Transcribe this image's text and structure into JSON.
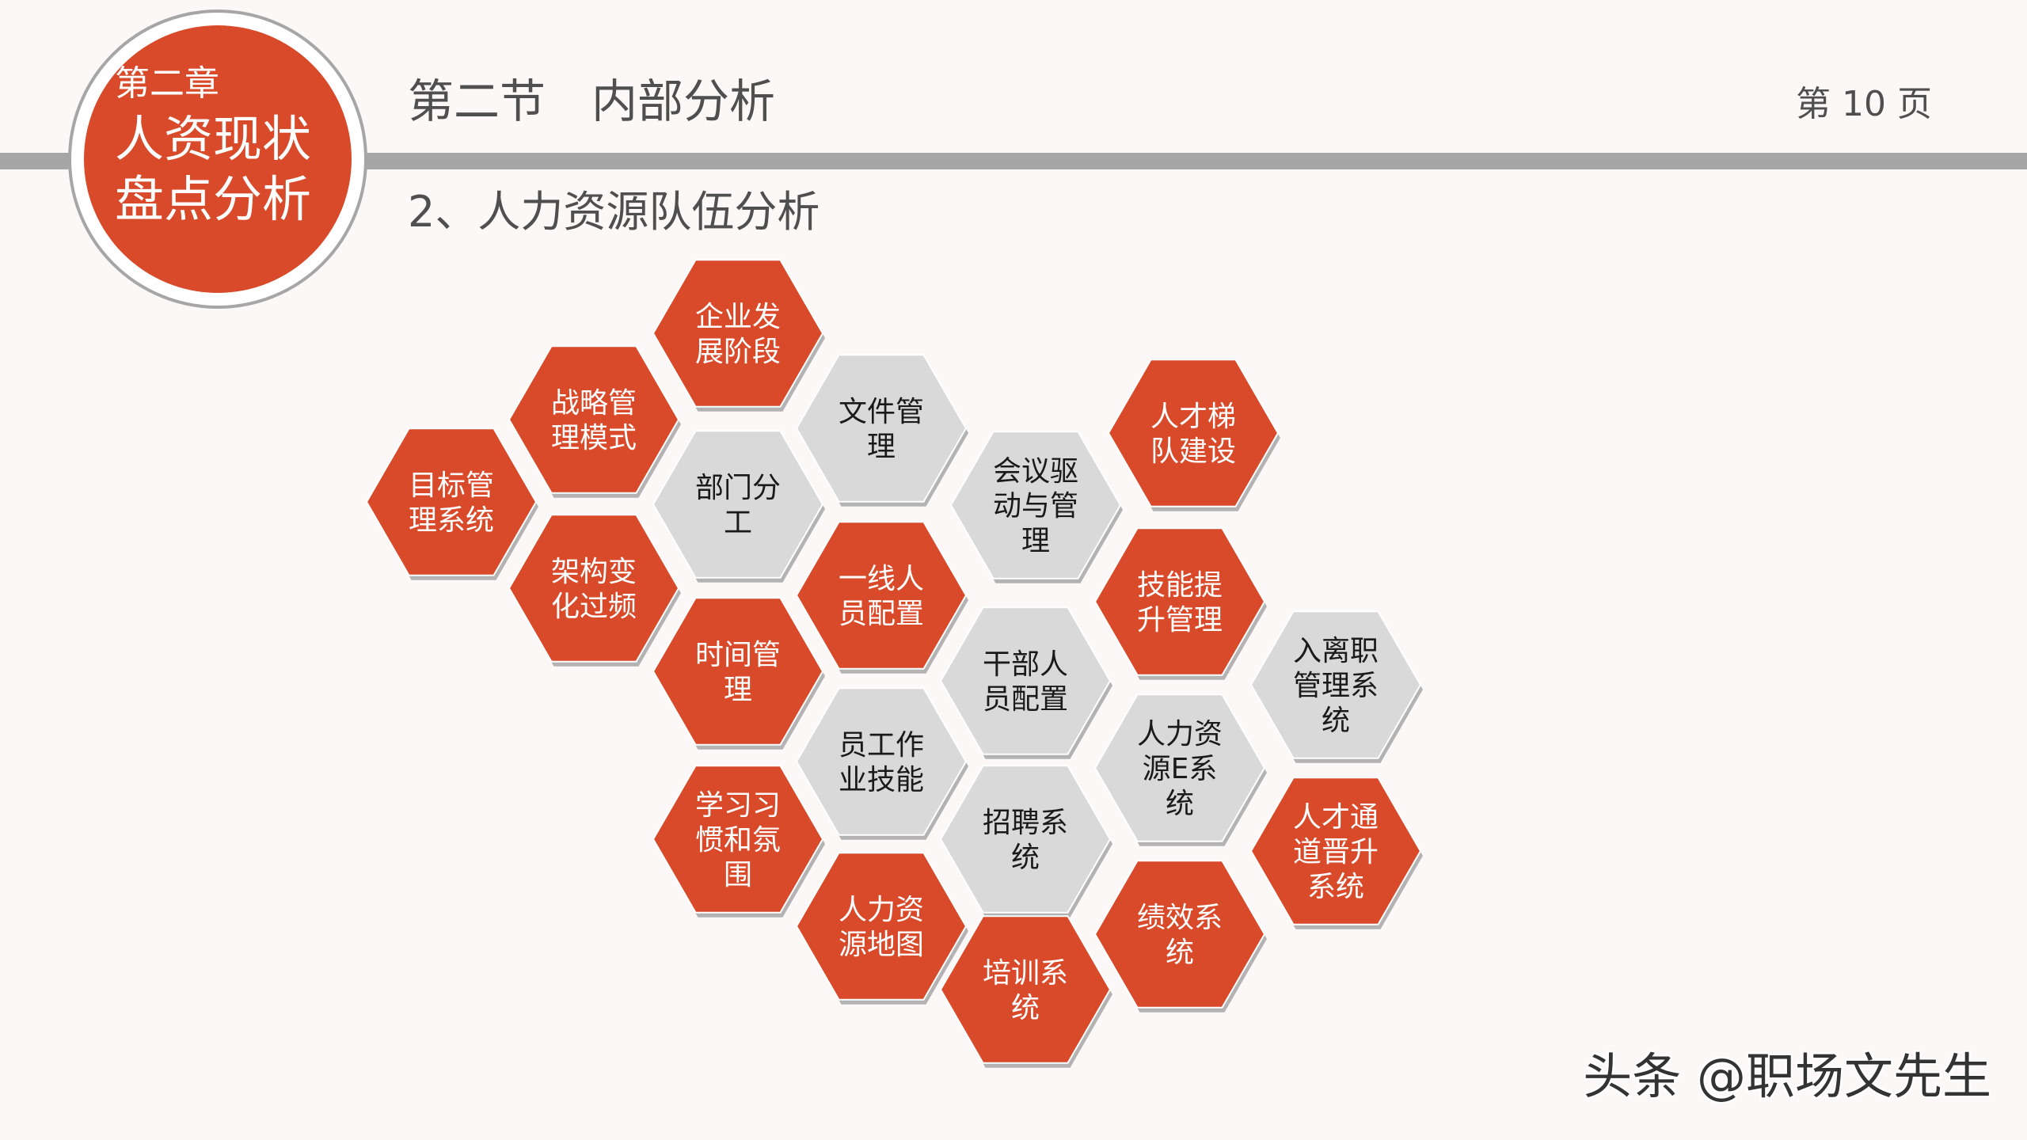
{
  "header": {
    "chapter": "第二章",
    "chapter_title": "人资现状盘点分析",
    "section_title": "第二节　内部分析",
    "page_label": "第 10 页",
    "subtitle": "2、人力资源队伍分析"
  },
  "colors": {
    "accent": "#d84a2a",
    "neutral": "#d9d9d9",
    "bar": "#a6a6a6"
  },
  "hexagons": [
    {
      "name": "hex-target-management",
      "lines": [
        "目标管",
        "理系统"
      ],
      "tone": "red"
    },
    {
      "name": "hex-strategy-mode",
      "lines": [
        "战略管",
        "理模式"
      ],
      "tone": "red"
    },
    {
      "name": "hex-structure-change",
      "lines": [
        "架构变",
        "化过频"
      ],
      "tone": "red"
    },
    {
      "name": "hex-enterprise-stage",
      "lines": [
        "企业发",
        "展阶段"
      ],
      "tone": "red"
    },
    {
      "name": "hex-department-division",
      "lines": [
        "部门分",
        "工"
      ],
      "tone": "gray"
    },
    {
      "name": "hex-time-management",
      "lines": [
        "时间管",
        "理"
      ],
      "tone": "red"
    },
    {
      "name": "hex-learning-habits",
      "lines": [
        "学习习",
        "惯和氛",
        "围"
      ],
      "tone": "red"
    },
    {
      "name": "hex-document-management",
      "lines": [
        "文件管",
        "理"
      ],
      "tone": "gray"
    },
    {
      "name": "hex-frontline-staffing",
      "lines": [
        "一线人",
        "员配置"
      ],
      "tone": "red"
    },
    {
      "name": "hex-employee-skills",
      "lines": [
        "员工作",
        "业技能"
      ],
      "tone": "gray"
    },
    {
      "name": "hex-hr-map",
      "lines": [
        "人力资",
        "源地图"
      ],
      "tone": "red"
    },
    {
      "name": "hex-meeting-driven",
      "lines": [
        "会议驱",
        "动与管",
        "理"
      ],
      "tone": "gray"
    },
    {
      "name": "hex-cadre-staffing",
      "lines": [
        "干部人",
        "员配置"
      ],
      "tone": "gray"
    },
    {
      "name": "hex-recruitment-system",
      "lines": [
        "招聘系",
        "统"
      ],
      "tone": "gray"
    },
    {
      "name": "hex-training-system",
      "lines": [
        "培训系",
        "统"
      ],
      "tone": "red"
    },
    {
      "name": "hex-talent-ladder",
      "lines": [
        "人才梯",
        "队建设"
      ],
      "tone": "red"
    },
    {
      "name": "hex-skill-improvement",
      "lines": [
        "技能提",
        "升管理"
      ],
      "tone": "red"
    },
    {
      "name": "hex-hr-e-system",
      "lines": [
        "人力资",
        "源E系",
        "统"
      ],
      "tone": "gray"
    },
    {
      "name": "hex-performance-system",
      "lines": [
        "绩效系",
        "统"
      ],
      "tone": "red"
    },
    {
      "name": "hex-onboarding-system",
      "lines": [
        "入离职",
        "管理系",
        "统"
      ],
      "tone": "gray"
    },
    {
      "name": "hex-talent-promotion",
      "lines": [
        "人才通",
        "道晋升",
        "系统"
      ],
      "tone": "red"
    }
  ],
  "watermark": "头条 @职场文先生"
}
